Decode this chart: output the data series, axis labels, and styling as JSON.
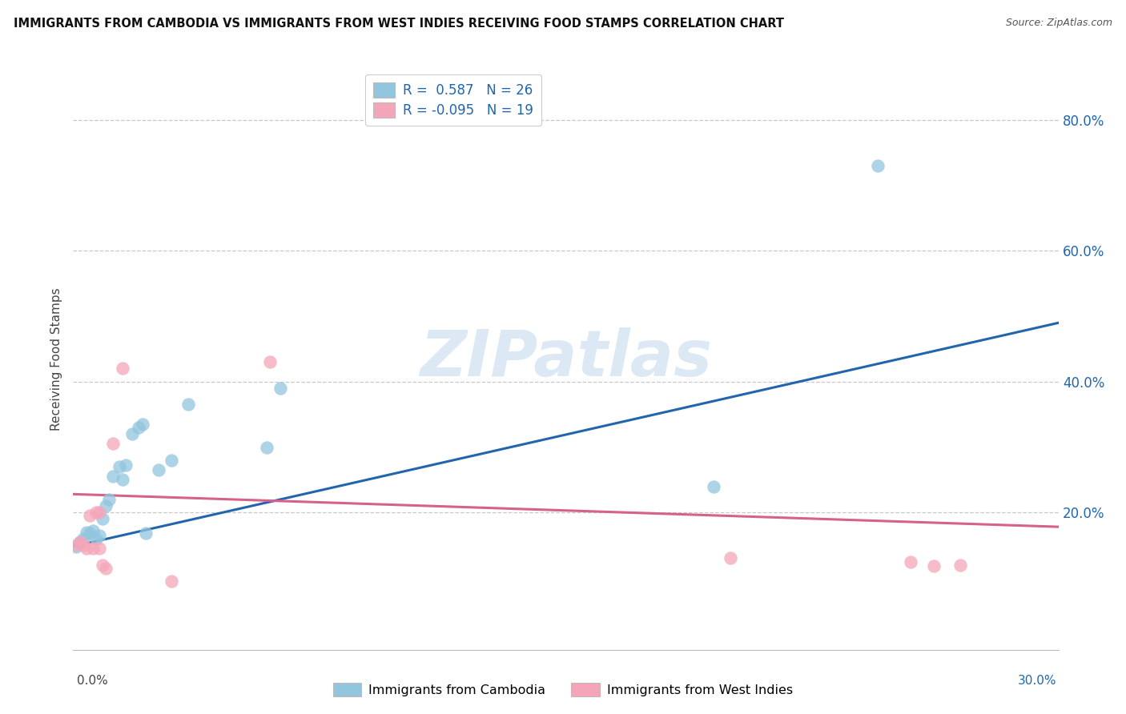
{
  "title": "IMMIGRANTS FROM CAMBODIA VS IMMIGRANTS FROM WEST INDIES RECEIVING FOOD STAMPS CORRELATION CHART",
  "source": "Source: ZipAtlas.com",
  "ylabel": "Receiving Food Stamps",
  "xlim": [
    0.0,
    0.3
  ],
  "ylim": [
    -0.01,
    0.88
  ],
  "ytick_values": [
    0.2,
    0.4,
    0.6,
    0.8
  ],
  "right_ytick_labels": [
    "20.0%",
    "40.0%",
    "60.0%",
    "80.0%"
  ],
  "blue_scatter_color": "#92c5de",
  "blue_line_color": "#2166ac",
  "pink_scatter_color": "#f4a6b8",
  "pink_line_color": "#d6618a",
  "watermark_text": "ZIPatlas",
  "cambodia_x": [
    0.001,
    0.002,
    0.003,
    0.004,
    0.005,
    0.006,
    0.007,
    0.008,
    0.009,
    0.01,
    0.011,
    0.012,
    0.014,
    0.015,
    0.016,
    0.018,
    0.02,
    0.021,
    0.022,
    0.026,
    0.03,
    0.035,
    0.059,
    0.063,
    0.195,
    0.245
  ],
  "cambodia_y": [
    0.148,
    0.155,
    0.16,
    0.17,
    0.168,
    0.172,
    0.16,
    0.165,
    0.19,
    0.21,
    0.22,
    0.255,
    0.27,
    0.25,
    0.272,
    0.32,
    0.33,
    0.335,
    0.168,
    0.265,
    0.28,
    0.365,
    0.3,
    0.39,
    0.24,
    0.73
  ],
  "westindies_x": [
    0.001,
    0.002,
    0.003,
    0.004,
    0.005,
    0.006,
    0.007,
    0.008,
    0.009,
    0.01,
    0.012,
    0.015,
    0.06,
    0.2,
    0.03,
    0.008,
    0.255,
    0.262,
    0.27
  ],
  "westindies_y": [
    0.15,
    0.155,
    0.15,
    0.145,
    0.195,
    0.145,
    0.2,
    0.145,
    0.12,
    0.115,
    0.305,
    0.42,
    0.43,
    0.13,
    0.095,
    0.2,
    0.124,
    0.118,
    0.12
  ],
  "blue_trendline_x": [
    0.0,
    0.3
  ],
  "blue_trendline_y": [
    0.148,
    0.49
  ],
  "pink_trendline_x": [
    0.0,
    0.3
  ],
  "pink_trendline_y": [
    0.228,
    0.178
  ],
  "legend_label1": "R =  0.587   N = 26",
  "legend_label2": "R = -0.095   N = 19",
  "label_cambodia": "Immigrants from Cambodia",
  "label_westindies": "Immigrants from West Indies"
}
